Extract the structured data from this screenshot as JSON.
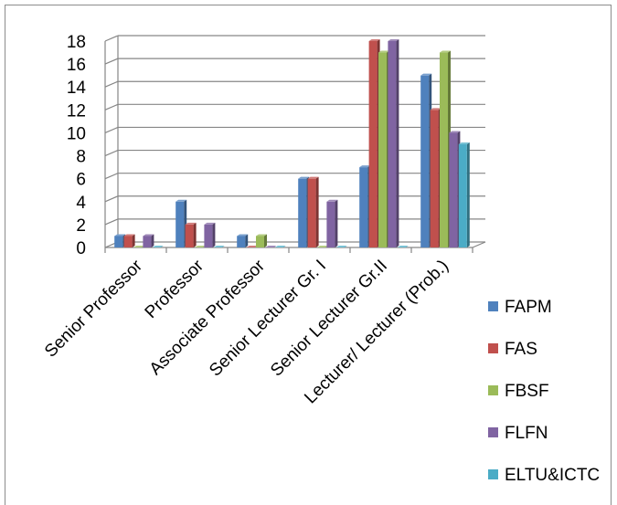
{
  "chart_data": {
    "type": "bar",
    "title": "",
    "xlabel": "",
    "ylabel": "",
    "ylim": [
      0,
      18
    ],
    "yticks": [
      0,
      2,
      4,
      6,
      8,
      10,
      12,
      14,
      16,
      18
    ],
    "grid": true,
    "style": "3d-clustered-column",
    "legend_position": "right",
    "categories": [
      "Senior Professor",
      "Professor",
      "Associate Professor",
      "Senior Lecturer Gr. I",
      "Senior Lecturer Gr.II",
      "Lecturer/ Lecturer (Prob.)"
    ],
    "series": [
      {
        "name": "FAPM",
        "color": "#4F81BD",
        "values": [
          1,
          4,
          1,
          6,
          7,
          15
        ]
      },
      {
        "name": "FAS",
        "color": "#C0504D",
        "values": [
          1,
          2,
          0,
          6,
          18,
          12
        ]
      },
      {
        "name": "FBSF",
        "color": "#9BBB59",
        "values": [
          0,
          0,
          1,
          0,
          17,
          17
        ]
      },
      {
        "name": "FLFN",
        "color": "#8064A2",
        "values": [
          1,
          2,
          0,
          4,
          18,
          10
        ]
      },
      {
        "name": "ELTU&ICTC",
        "color": "#4BACC6",
        "values": [
          0,
          0,
          0,
          0,
          0,
          9
        ]
      }
    ]
  }
}
